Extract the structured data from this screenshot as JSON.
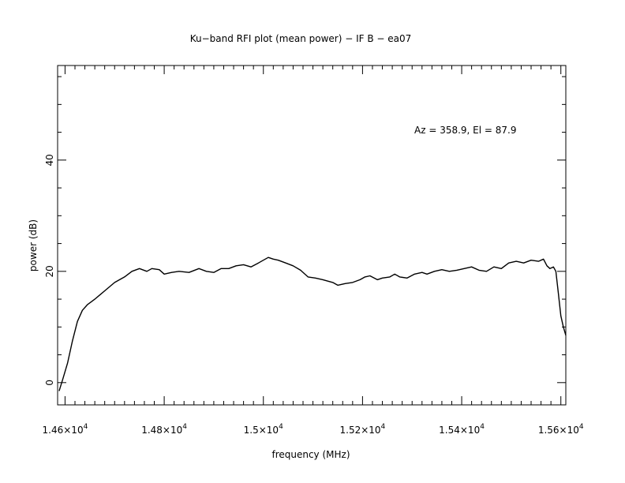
{
  "chart_data": {
    "type": "line",
    "title": "Ku−band RFI plot (mean power) − IF B − ea07",
    "xlabel": "frequency (MHz)",
    "ylabel": "power (dB)",
    "annotation": "Az = 358.9, El = 87.9",
    "xlim": [
      14585,
      15610
    ],
    "ylim": [
      -4,
      57
    ],
    "x_ticks": [
      {
        "value": 14600,
        "mantissa": "1.46",
        "exp": "4"
      },
      {
        "value": 14800,
        "mantissa": "1.48",
        "exp": "4"
      },
      {
        "value": 15000,
        "mantissa": "1.5",
        "exp": "4"
      },
      {
        "value": 15200,
        "mantissa": "1.52",
        "exp": "4"
      },
      {
        "value": 15400,
        "mantissa": "1.54",
        "exp": "4"
      },
      {
        "value": 15600,
        "mantissa": "1.56",
        "exp": "4"
      }
    ],
    "y_ticks": [
      {
        "value": 0,
        "label": "0"
      },
      {
        "value": 20,
        "label": "20"
      },
      {
        "value": 40,
        "label": "40"
      }
    ],
    "grid": false,
    "line_color": "#000000",
    "series": [
      {
        "x": [
          14588,
          14595,
          14605,
          14615,
          14625,
          14635,
          14645,
          14660,
          14680,
          14700,
          14720,
          14735,
          14750,
          14765,
          14775,
          14790,
          14800,
          14815,
          14830,
          14850,
          14870,
          14885,
          14900,
          14915,
          14930,
          14945,
          14960,
          14975,
          14990,
          15000,
          15010,
          15020,
          15030,
          15045,
          15060,
          15075,
          15090,
          15105,
          15120,
          15140,
          15150,
          15165,
          15180,
          15195,
          15205,
          15215,
          15230,
          15240,
          15255,
          15265,
          15275,
          15290,
          15305,
          15320,
          15330,
          15345,
          15360,
          15375,
          15390,
          15405,
          15420,
          15435,
          15450,
          15465,
          15480,
          15495,
          15510,
          15525,
          15540,
          15555,
          15565,
          15572,
          15578,
          15585,
          15590,
          15595,
          15600,
          15605,
          15610
        ],
        "y": [
          -1.5,
          0.5,
          3.5,
          7.5,
          11,
          13,
          14,
          15,
          16.5,
          18,
          19,
          20,
          20.5,
          20,
          20.5,
          20.3,
          19.5,
          19.8,
          20,
          19.8,
          20.5,
          20,
          19.8,
          20.5,
          20.5,
          21,
          21.2,
          20.8,
          21.5,
          22,
          22.5,
          22.2,
          22,
          21.5,
          21,
          20.2,
          19,
          18.8,
          18.5,
          18,
          17.5,
          17.8,
          18,
          18.5,
          19,
          19.2,
          18.5,
          18.8,
          19,
          19.5,
          19,
          18.8,
          19.5,
          19.8,
          19.5,
          20,
          20.3,
          20,
          20.2,
          20.5,
          20.8,
          20.2,
          20,
          20.8,
          20.5,
          21.5,
          21.8,
          21.5,
          22,
          21.8,
          22.2,
          21,
          20.5,
          20.8,
          20,
          16,
          12,
          10,
          8.5
        ]
      }
    ]
  }
}
